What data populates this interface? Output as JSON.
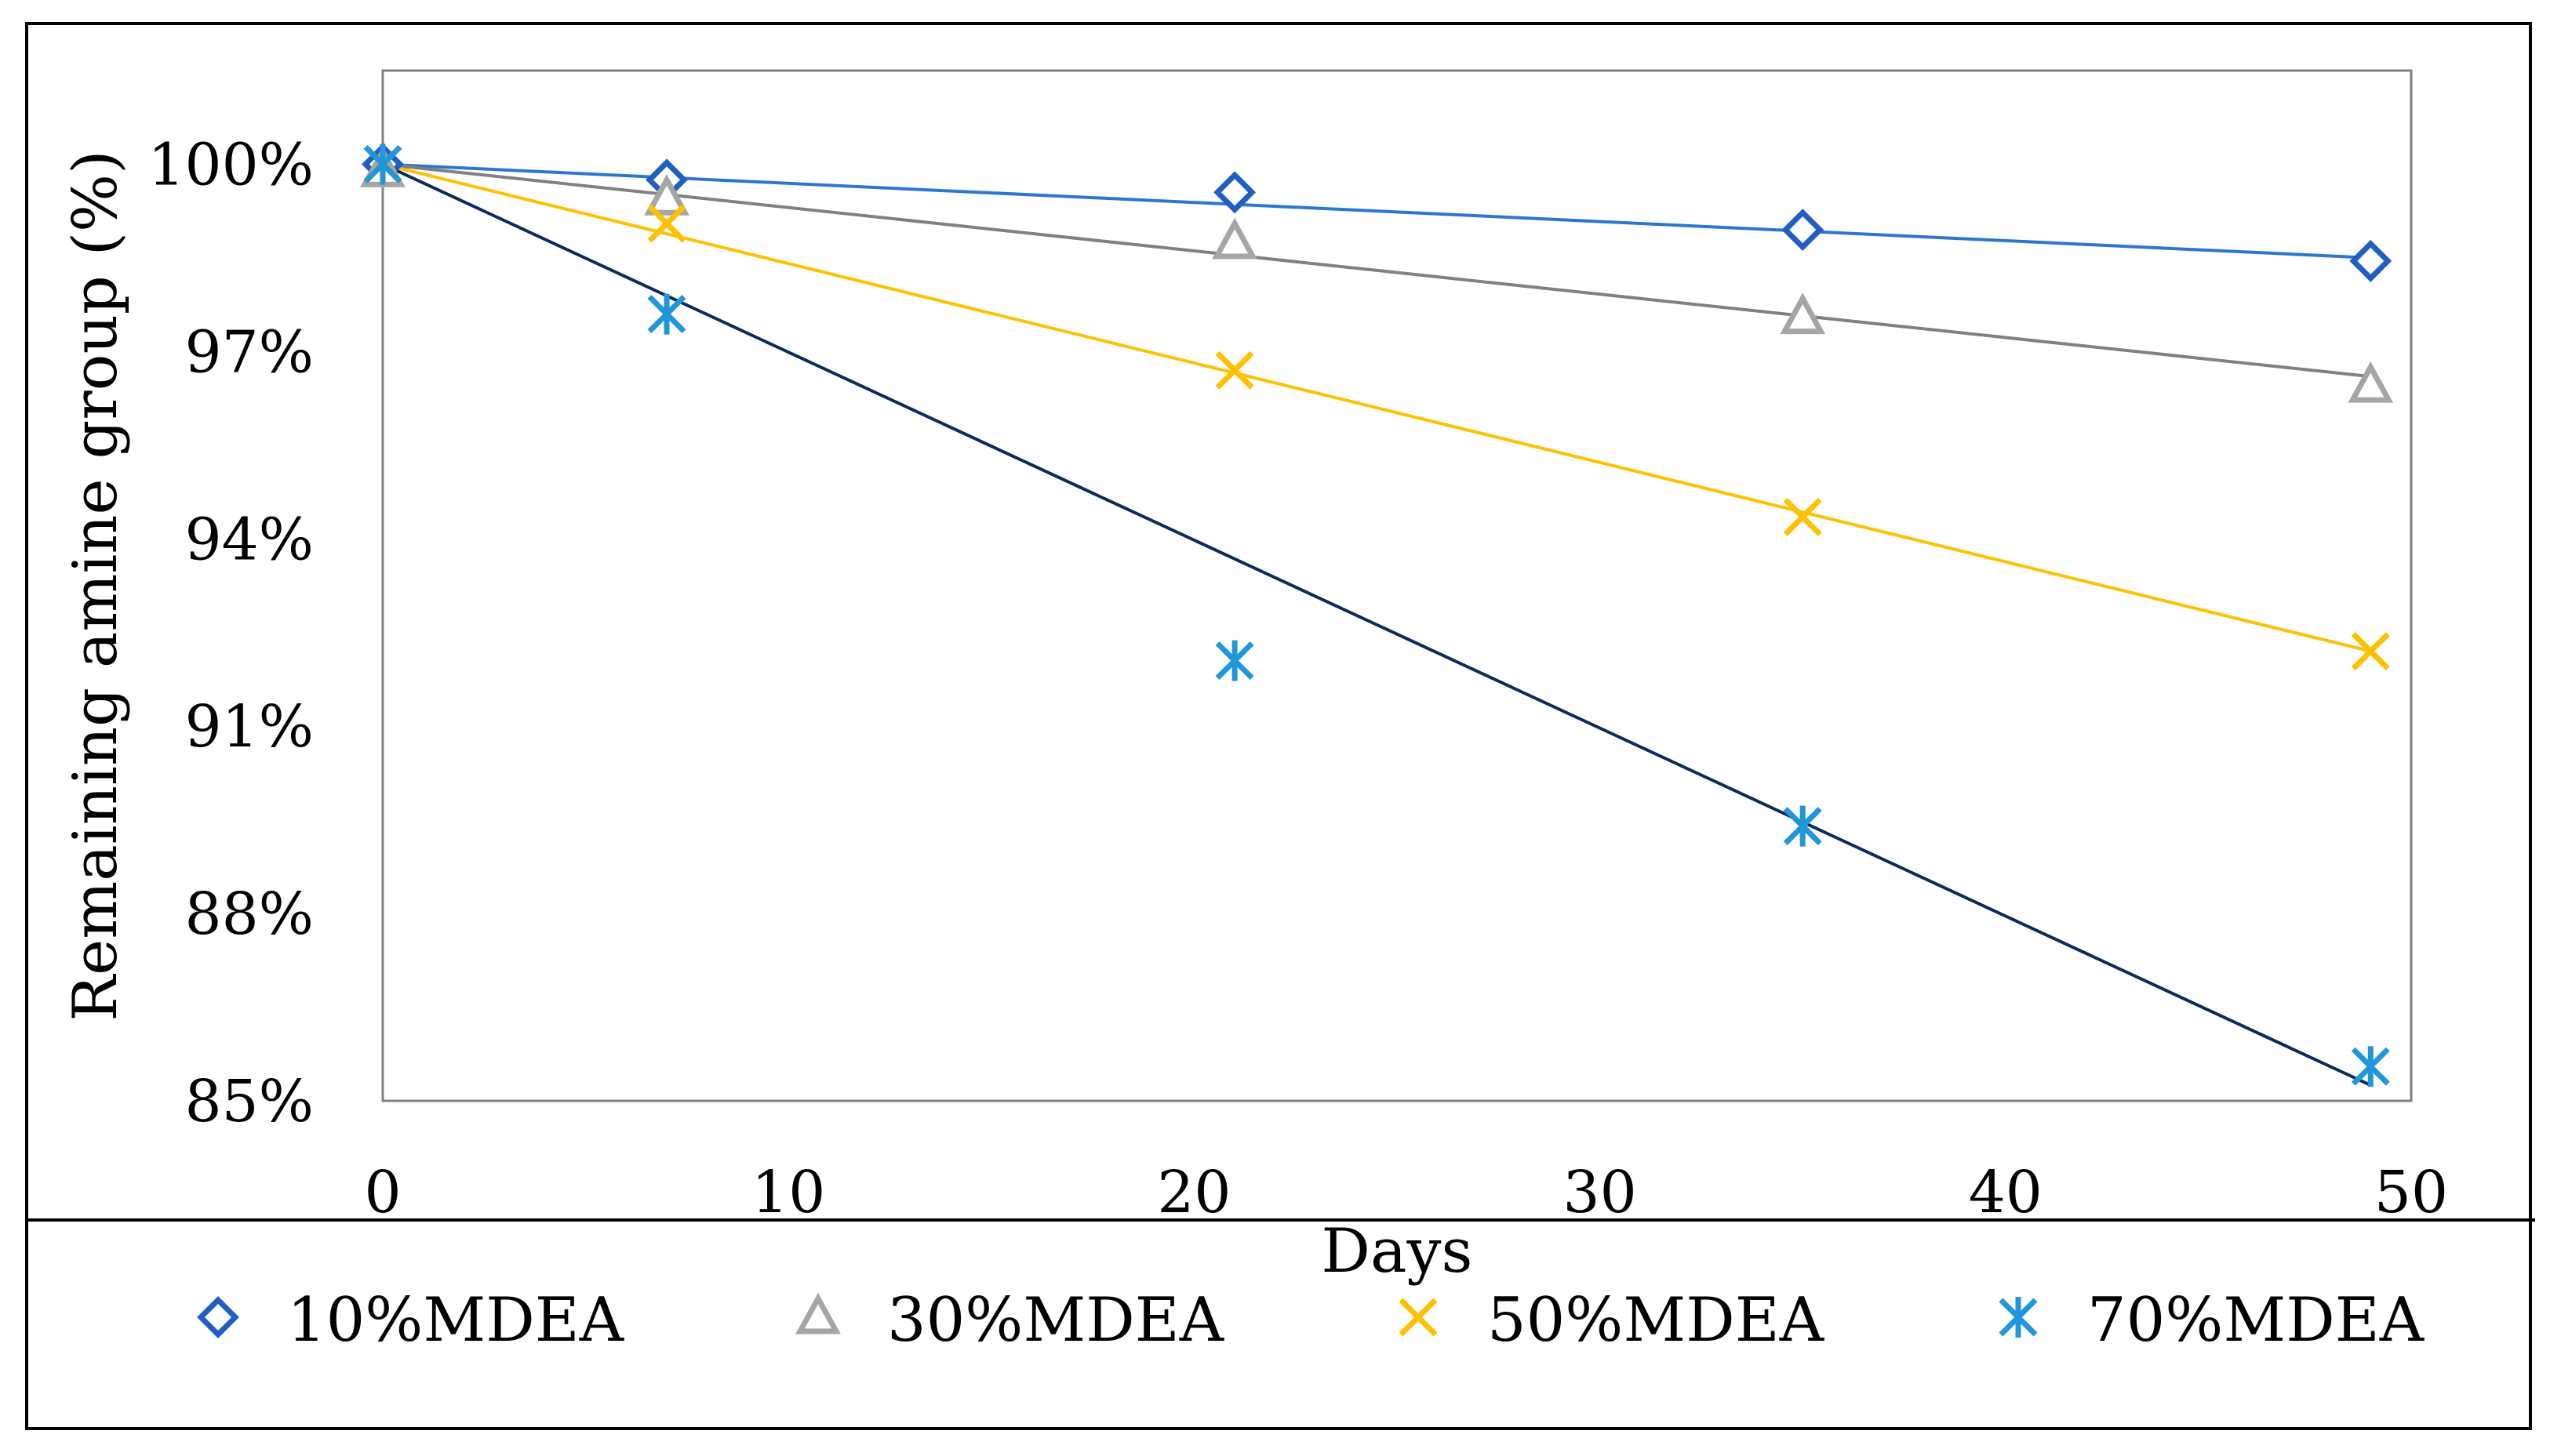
{
  "chart_data": {
    "type": "scatter",
    "title": "",
    "xlabel": "Days",
    "ylabel": "Remaining amine group (%)",
    "xlim": [
      0,
      50
    ],
    "ylim": [
      85,
      101.5
    ],
    "xticks": [
      0,
      10,
      20,
      30,
      40,
      50
    ],
    "yticks": [
      85,
      88,
      91,
      94,
      97,
      100
    ],
    "ytick_labels": [
      "85%",
      "88%",
      "91%",
      "94%",
      "97%",
      "100%"
    ],
    "grid": false,
    "legend_position": "bottom",
    "series": [
      {
        "name": "10%MDEA",
        "marker": "diamond",
        "color": "#1f5fbf",
        "line_color": "#2e75cf",
        "x": [
          0,
          7,
          21,
          35,
          49
        ],
        "y": [
          100.0,
          99.75,
          99.55,
          98.95,
          98.45
        ],
        "trendline": [
          [
            0,
            100.0
          ],
          [
            49,
            98.5
          ]
        ]
      },
      {
        "name": "30%MDEA",
        "marker": "triangle",
        "color": "#a5a5a5",
        "line_color": "#808080",
        "x": [
          0,
          7,
          21,
          35,
          49
        ],
        "y": [
          99.9,
          99.45,
          98.75,
          97.55,
          96.45
        ],
        "trendline": [
          [
            0,
            100.0
          ],
          [
            49,
            96.6
          ]
        ]
      },
      {
        "name": "50%MDEA",
        "marker": "x",
        "color": "#ffc000",
        "line_color": "#ffc000",
        "x": [
          0,
          7,
          21,
          35,
          49
        ],
        "y": [
          100.0,
          99.05,
          96.7,
          94.35,
          92.2
        ],
        "trendline": [
          [
            0,
            100.0
          ],
          [
            49,
            92.2
          ]
        ]
      },
      {
        "name": "70%MDEA",
        "marker": "star",
        "color": "#2196d9",
        "line_color": "#0d2a5c",
        "x": [
          0,
          7,
          21,
          35,
          49
        ],
        "y": [
          100.0,
          97.6,
          92.05,
          89.4,
          85.55
        ],
        "trendline": [
          [
            0,
            100.0
          ],
          [
            49,
            85.25
          ]
        ]
      }
    ]
  }
}
